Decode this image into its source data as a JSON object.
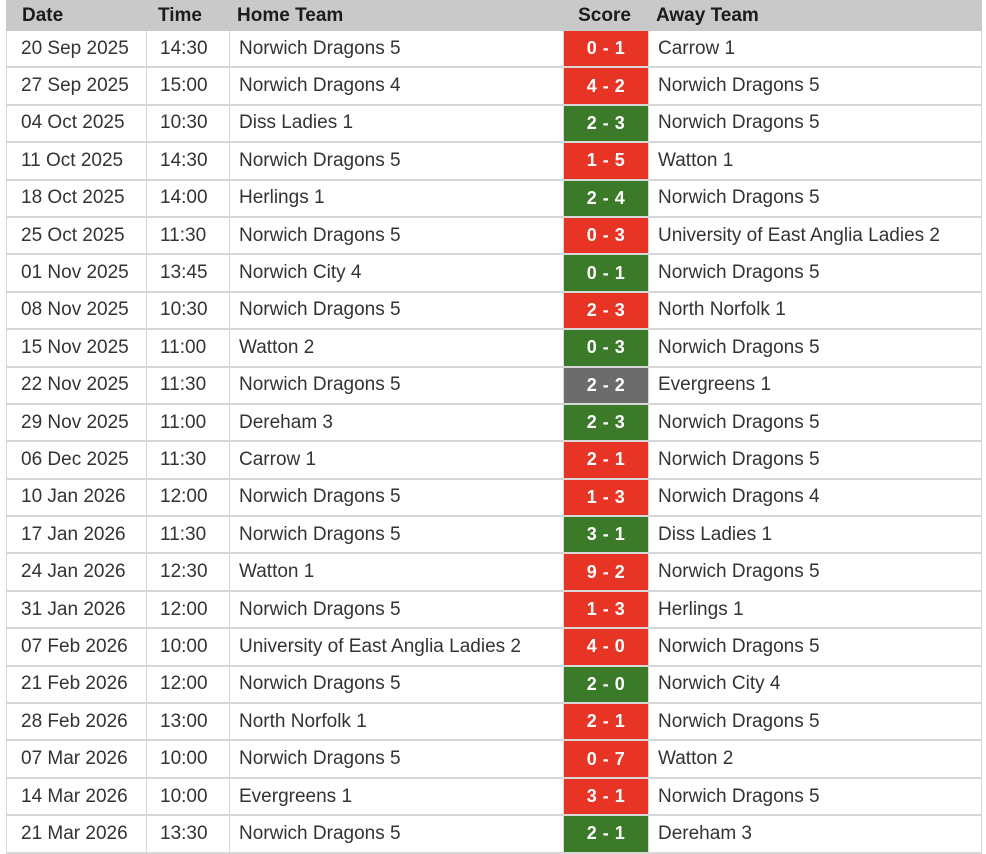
{
  "table": {
    "columns": [
      {
        "label": "Date"
      },
      {
        "label": "Time"
      },
      {
        "label": "Home Team"
      },
      {
        "label": "Score"
      },
      {
        "label": "Away Team"
      }
    ],
    "rows": [
      {
        "date": "20 Sep 2025",
        "time": "14:30",
        "home": "Norwich Dragons 5",
        "score": "0 - 1",
        "result": "loss",
        "away": "Carrow 1"
      },
      {
        "date": "27 Sep 2025",
        "time": "15:00",
        "home": "Norwich Dragons 4",
        "score": "4 - 2",
        "result": "loss",
        "away": "Norwich Dragons 5"
      },
      {
        "date": "04 Oct 2025",
        "time": "10:30",
        "home": "Diss Ladies 1",
        "score": "2 - 3",
        "result": "win",
        "away": "Norwich Dragons 5"
      },
      {
        "date": "11 Oct 2025",
        "time": "14:30",
        "home": "Norwich Dragons 5",
        "score": "1 - 5",
        "result": "loss",
        "away": "Watton 1"
      },
      {
        "date": "18 Oct 2025",
        "time": "14:00",
        "home": "Herlings 1",
        "score": "2 - 4",
        "result": "win",
        "away": "Norwich Dragons 5"
      },
      {
        "date": "25 Oct 2025",
        "time": "11:30",
        "home": "Norwich Dragons 5",
        "score": "0 - 3",
        "result": "loss",
        "away": "University of East Anglia Ladies 2"
      },
      {
        "date": "01 Nov 2025",
        "time": "13:45",
        "home": "Norwich City 4",
        "score": "0 - 1",
        "result": "win",
        "away": "Norwich Dragons 5"
      },
      {
        "date": "08 Nov 2025",
        "time": "10:30",
        "home": "Norwich Dragons 5",
        "score": "2 - 3",
        "result": "loss",
        "away": "North Norfolk 1"
      },
      {
        "date": "15 Nov 2025",
        "time": "11:00",
        "home": "Watton 2",
        "score": "0 - 3",
        "result": "win",
        "away": "Norwich Dragons 5"
      },
      {
        "date": "22 Nov 2025",
        "time": "11:30",
        "home": "Norwich Dragons 5",
        "score": "2 - 2",
        "result": "draw",
        "away": "Evergreens 1"
      },
      {
        "date": "29 Nov 2025",
        "time": "11:00",
        "home": "Dereham 3",
        "score": "2 - 3",
        "result": "win",
        "away": "Norwich Dragons 5"
      },
      {
        "date": "06 Dec 2025",
        "time": "11:30",
        "home": "Carrow 1",
        "score": "2 - 1",
        "result": "loss",
        "away": "Norwich Dragons 5"
      },
      {
        "date": "10 Jan 2026",
        "time": "12:00",
        "home": "Norwich Dragons 5",
        "score": "1 - 3",
        "result": "loss",
        "away": "Norwich Dragons 4"
      },
      {
        "date": "17 Jan 2026",
        "time": "11:30",
        "home": "Norwich Dragons 5",
        "score": "3 - 1",
        "result": "win",
        "away": "Diss Ladies 1"
      },
      {
        "date": "24 Jan 2026",
        "time": "12:30",
        "home": "Watton 1",
        "score": "9 - 2",
        "result": "loss",
        "away": "Norwich Dragons 5"
      },
      {
        "date": "31 Jan 2026",
        "time": "12:00",
        "home": "Norwich Dragons 5",
        "score": "1 - 3",
        "result": "loss",
        "away": "Herlings 1"
      },
      {
        "date": "07 Feb 2026",
        "time": "10:00",
        "home": "University of East Anglia Ladies 2",
        "score": "4 - 0",
        "result": "loss",
        "away": "Norwich Dragons 5"
      },
      {
        "date": "21 Feb 2026",
        "time": "12:00",
        "home": "Norwich Dragons 5",
        "score": "2 - 0",
        "result": "win",
        "away": "Norwich City 4"
      },
      {
        "date": "28 Feb 2026",
        "time": "13:00",
        "home": "North Norfolk 1",
        "score": "2 - 1",
        "result": "loss",
        "away": "Norwich Dragons 5"
      },
      {
        "date": "07 Mar 2026",
        "time": "10:00",
        "home": "Norwich Dragons 5",
        "score": "0 - 7",
        "result": "loss",
        "away": "Watton 2"
      },
      {
        "date": "14 Mar 2026",
        "time": "10:00",
        "home": "Evergreens 1",
        "score": "3 - 1",
        "result": "loss",
        "away": "Norwich Dragons 5"
      },
      {
        "date": "21 Mar 2026",
        "time": "13:30",
        "home": "Norwich Dragons 5",
        "score": "2 - 1",
        "result": "win",
        "away": "Dereham 3"
      }
    ]
  },
  "colors": {
    "win": "#3a7a29",
    "loss": "#e83425",
    "draw": "#6c6c6c"
  }
}
